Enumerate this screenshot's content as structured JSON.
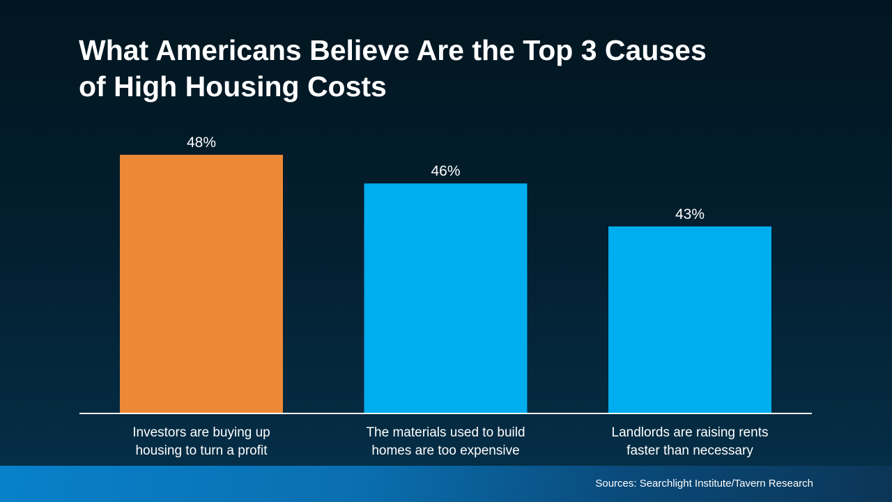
{
  "chart_data": {
    "type": "bar",
    "title": "What Americans Believe Are the Top 3 Causes of High Housing Costs",
    "title_lines": [
      "What Americans Believe Are the Top 3 Causes",
      "of High Housing Costs"
    ],
    "categories": [
      [
        "Investors are buying up",
        "housing to turn a profit"
      ],
      [
        "The materials used to build",
        "homes are too expensive"
      ],
      [
        "Landlords are raising rents",
        "faster than necessary"
      ]
    ],
    "values": [
      48,
      46,
      43
    ],
    "data_labels": [
      "48%",
      "46%",
      "43%"
    ],
    "colors": [
      "#ed8936",
      "#00adee",
      "#00adee"
    ],
    "ylim": [
      30,
      48
    ],
    "grid": false,
    "legend": "none",
    "xlabel": "",
    "ylabel": ""
  },
  "footer": {
    "source": "Sources: Searchlight Institute/Tavern Research"
  }
}
